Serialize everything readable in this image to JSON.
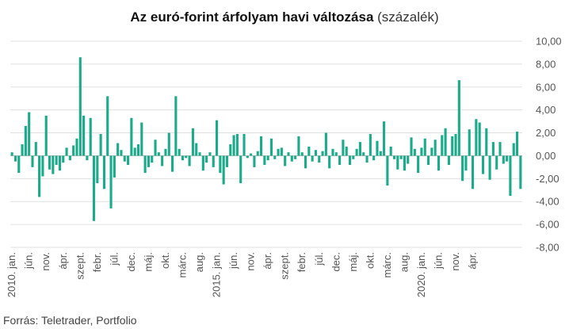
{
  "title": {
    "bold": "Az euró-forint árfolyam havi változása",
    "light": "(százalék)"
  },
  "source": "Forrás: Teletrader, Portfolio",
  "colors": {
    "bar": "#1aab8a",
    "grid": "#e0e0e0",
    "zero": "#bdbdbd"
  },
  "chart_data": {
    "type": "bar",
    "title": "Az euró-forint árfolyam havi változása (százalék)",
    "ylim": [
      -8,
      10
    ],
    "y_ticks": [
      "10,00",
      "8,00",
      "6,00",
      "4,00",
      "2,00",
      "0,00",
      "-2,00",
      "-4,00",
      "-6,00",
      "-8,00"
    ],
    "grid": true,
    "x_tick_labels": [
      "2010. jan.",
      "jún.",
      "nov.",
      "ápr.",
      "szept.",
      "febr.",
      "júl.",
      "dec.",
      "máj.",
      "okt.",
      "márc.",
      "aug.",
      "2015. jan.",
      "jún.",
      "nov.",
      "ápr.",
      "szept.",
      "febr.",
      "júl.",
      "dec.",
      "máj.",
      "okt.",
      "márc.",
      "aug.",
      "2020. jan.",
      "jún.",
      "nov.",
      "ápr."
    ],
    "start": "2010-01",
    "values": [
      0.3,
      -0.5,
      -1.5,
      1.0,
      2.6,
      3.8,
      -1.0,
      1.2,
      -3.6,
      -1.8,
      3.5,
      -1.2,
      -1.6,
      -0.8,
      -1.3,
      -0.6,
      0.7,
      -0.4,
      0.9,
      1.5,
      8.6,
      3.5,
      -0.4,
      3.3,
      -5.7,
      -2.4,
      1.9,
      -2.9,
      5.2,
      -4.6,
      -1.9,
      1.1,
      0.5,
      -0.5,
      -0.8,
      3.3,
      0.7,
      1.0,
      2.9,
      -1.5,
      -1.0,
      -0.6,
      1.4,
      0.3,
      -0.9,
      0.6,
      2.0,
      -1.4,
      5.2,
      0.6,
      -0.4,
      -0.2,
      -0.9,
      2.4,
      1.1,
      0.3,
      -1.3,
      -0.6,
      0.3,
      -1.0,
      3.1,
      -1.5,
      -2.5,
      -1.0,
      1.0,
      1.8,
      1.9,
      -2.4,
      1.9,
      -0.2,
      0.2,
      -1.0,
      0.4,
      1.7,
      -0.8,
      -0.4,
      1.5,
      -0.3,
      0.6,
      0.7,
      -0.9,
      0.3,
      -0.5,
      -0.3,
      1.7,
      0.3,
      -1.1,
      0.8,
      -0.5,
      0.5,
      -0.6,
      0.4,
      2.0,
      -1.1,
      0.6,
      0.3,
      -0.8,
      1.4,
      0.8,
      -0.8,
      -0.3,
      0.6,
      1.2,
      0.3,
      -0.6,
      1.9,
      -0.4,
      1.3,
      0.4,
      3.0,
      -2.6,
      0.8,
      -0.3,
      -1.2,
      -0.3,
      -1.3,
      -0.7,
      1.6,
      0.6,
      -1.5,
      0.7,
      1.5,
      -0.8,
      0.7,
      1.4,
      -1.3,
      1.8,
      2.4,
      -0.8,
      1.7,
      1.9,
      6.6,
      -2.2,
      -1.3,
      2.3,
      -2.9,
      3.2,
      2.9,
      -1.6,
      2.4,
      -2.1,
      1.2,
      -1.2,
      1.2,
      -0.7,
      -0.5,
      -3.5,
      1.1,
      2.1,
      -2.9
    ]
  }
}
